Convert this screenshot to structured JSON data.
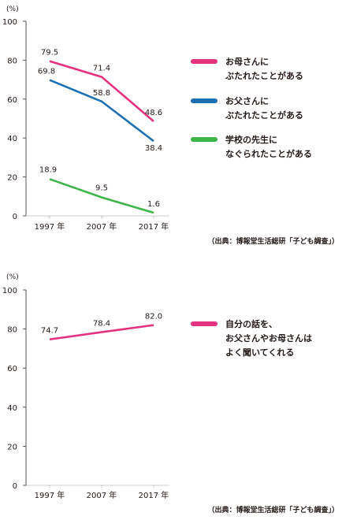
{
  "chart_data": [
    {
      "type": "line",
      "ylabel": "(%)",
      "ylim": [
        0,
        100
      ],
      "yticks": [
        "0",
        "20",
        "40",
        "60",
        "80",
        "100"
      ],
      "categories": [
        "1997 年",
        "2007 年",
        "2017 年"
      ],
      "series": [
        {
          "name": "お母さんに ぶたれたことがある",
          "legend_lines": [
            "お母さんに",
            "ぶたれたことがある"
          ],
          "color": "#e4327f",
          "values": [
            79.5,
            71.4,
            48.6
          ],
          "labels": [
            "79.5",
            "71.4",
            "48.6"
          ]
        },
        {
          "name": "お父さんに ぶたれたことがある",
          "legend_lines": [
            "お父さんに",
            "ぶたれたことがある"
          ],
          "color": "#1b6fb3",
          "values": [
            69.8,
            58.8,
            38.4
          ],
          "labels": [
            "69.8",
            "58.8",
            "38.4"
          ]
        },
        {
          "name": "学校の先生に なぐられたことがある",
          "legend_lines": [
            "学校の先生に",
            "なぐられたことがある"
          ],
          "color": "#3eb54a",
          "values": [
            18.9,
            9.5,
            1.6
          ],
          "labels": [
            "18.9",
            "9.5",
            "1.6"
          ]
        }
      ],
      "source": "（出典：博報堂生活総研「子ども調査」）"
    },
    {
      "type": "line",
      "ylabel": "(%)",
      "ylim": [
        0,
        100
      ],
      "yticks": [
        "0",
        "20",
        "40",
        "60",
        "80",
        "100"
      ],
      "categories": [
        "1997 年",
        "2007 年",
        "2017 年"
      ],
      "series": [
        {
          "name": "自分の話を、 お父さんやお母さんは よく聞いてくれる",
          "legend_lines": [
            "自分の話を、",
            "お父さんやお母さんは",
            "よく聞いてくれる"
          ],
          "color": "#e4327f",
          "values": [
            74.7,
            78.4,
            82.0
          ],
          "labels": [
            "74.7",
            "78.4",
            "82.0"
          ]
        }
      ],
      "source": "（出典：博報堂生活総研「子ども調査」）"
    }
  ]
}
